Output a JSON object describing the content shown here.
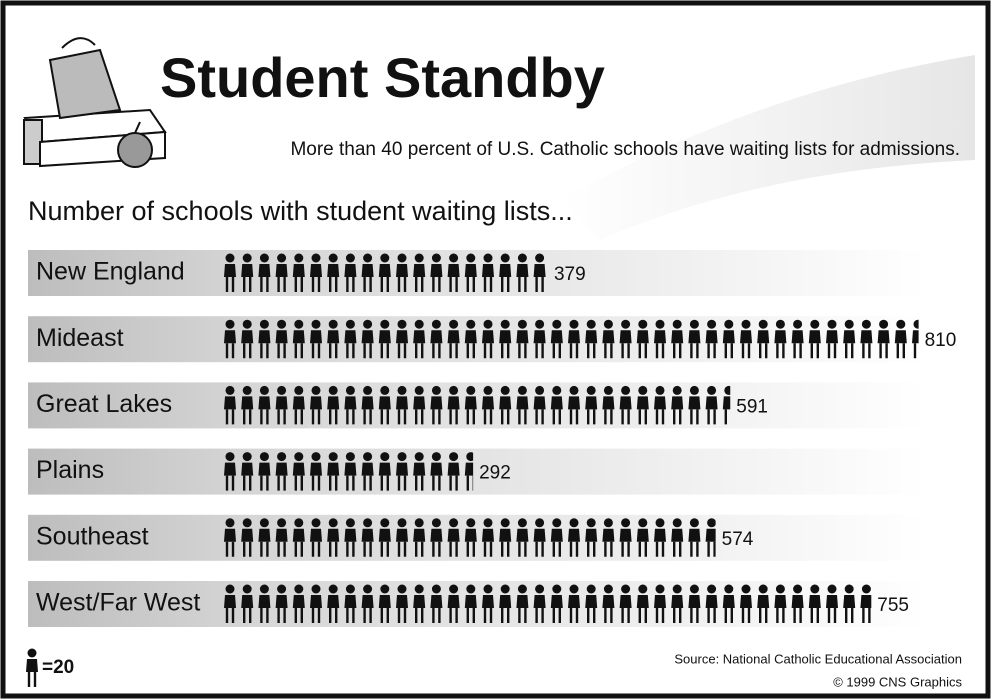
{
  "chart_data": {
    "type": "pictogram",
    "title": "Student Standby",
    "subtitle": "More than 40 percent of U.S. Catholic schools have waiting lists for admissions.",
    "heading": "Number of schools with student waiting lists...",
    "categories": [
      "New England",
      "Mideast",
      "Great Lakes",
      "Plains",
      "Southeast",
      "West/Far West"
    ],
    "values": [
      379,
      810,
      591,
      292,
      574,
      755
    ],
    "unit": {
      "value": 20,
      "label": "=20"
    },
    "color": "#111111",
    "source": "Source: National Catholic Educational Association",
    "copyright": "© 1999 CNS Graphics"
  }
}
